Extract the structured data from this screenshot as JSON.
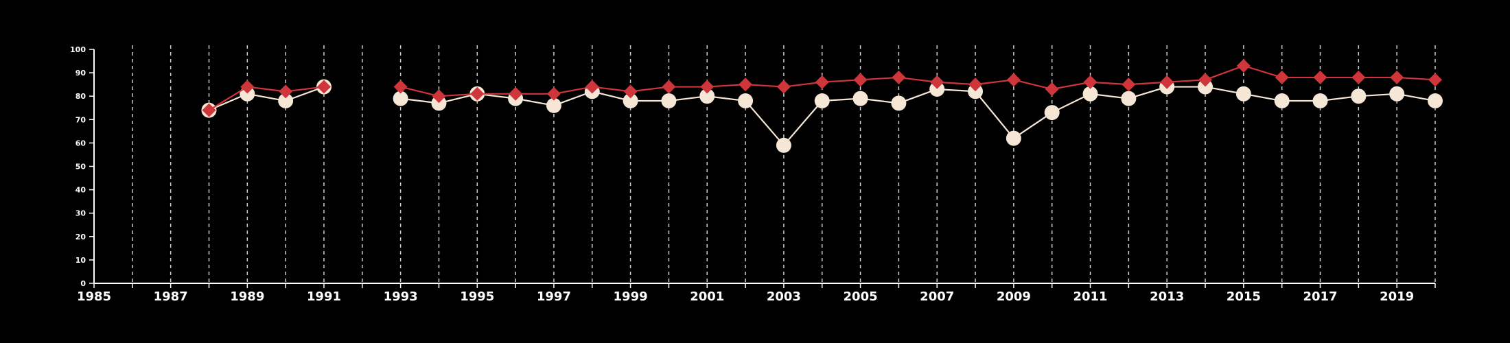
{
  "colors": {
    "background": "#000000",
    "axis": "#ffffff",
    "grid": "#cfcfcf",
    "series_a": "#f5e6d6",
    "series_b": "#cf363b"
  },
  "chart_data": {
    "type": "line",
    "title": "",
    "xlabel": "",
    "ylabel": "",
    "xlim": [
      1985,
      2020
    ],
    "ylim": [
      0,
      100
    ],
    "x_ticks": [
      1985,
      1987,
      1989,
      1991,
      1993,
      1995,
      1997,
      1999,
      2001,
      2003,
      2005,
      2007,
      2009,
      2011,
      2013,
      2015,
      2017,
      2019
    ],
    "y_ticks": [
      0,
      10,
      20,
      30,
      40,
      50,
      60,
      70,
      80,
      90,
      100
    ],
    "grid": "vertical dashed lines at each year",
    "legend": "none",
    "x": [
      1985,
      1986,
      1987,
      1988,
      1989,
      1990,
      1991,
      1992,
      1993,
      1994,
      1995,
      1996,
      1997,
      1998,
      1999,
      2000,
      2001,
      2002,
      2003,
      2004,
      2005,
      2006,
      2007,
      2008,
      2009,
      2010,
      2011,
      2012,
      2013,
      2014,
      2015,
      2016,
      2017,
      2018,
      2019,
      2020
    ],
    "series": [
      {
        "marker": "circle",
        "values": [
          null,
          null,
          null,
          74,
          81,
          78,
          84,
          null,
          79,
          77,
          81,
          79,
          76,
          82,
          78,
          78,
          80,
          78,
          59,
          78,
          79,
          77,
          83,
          82,
          62,
          73,
          81,
          79,
          84,
          84,
          81,
          78,
          78,
          80,
          81,
          78
        ]
      },
      {
        "marker": "diamond",
        "values": [
          null,
          null,
          null,
          74,
          84,
          82,
          84,
          null,
          84,
          80,
          81,
          81,
          81,
          84,
          82,
          84,
          84,
          85,
          84,
          86,
          87,
          88,
          86,
          85,
          87,
          83,
          86,
          85,
          86,
          87,
          93,
          88,
          88,
          88,
          88,
          87
        ]
      }
    ]
  }
}
